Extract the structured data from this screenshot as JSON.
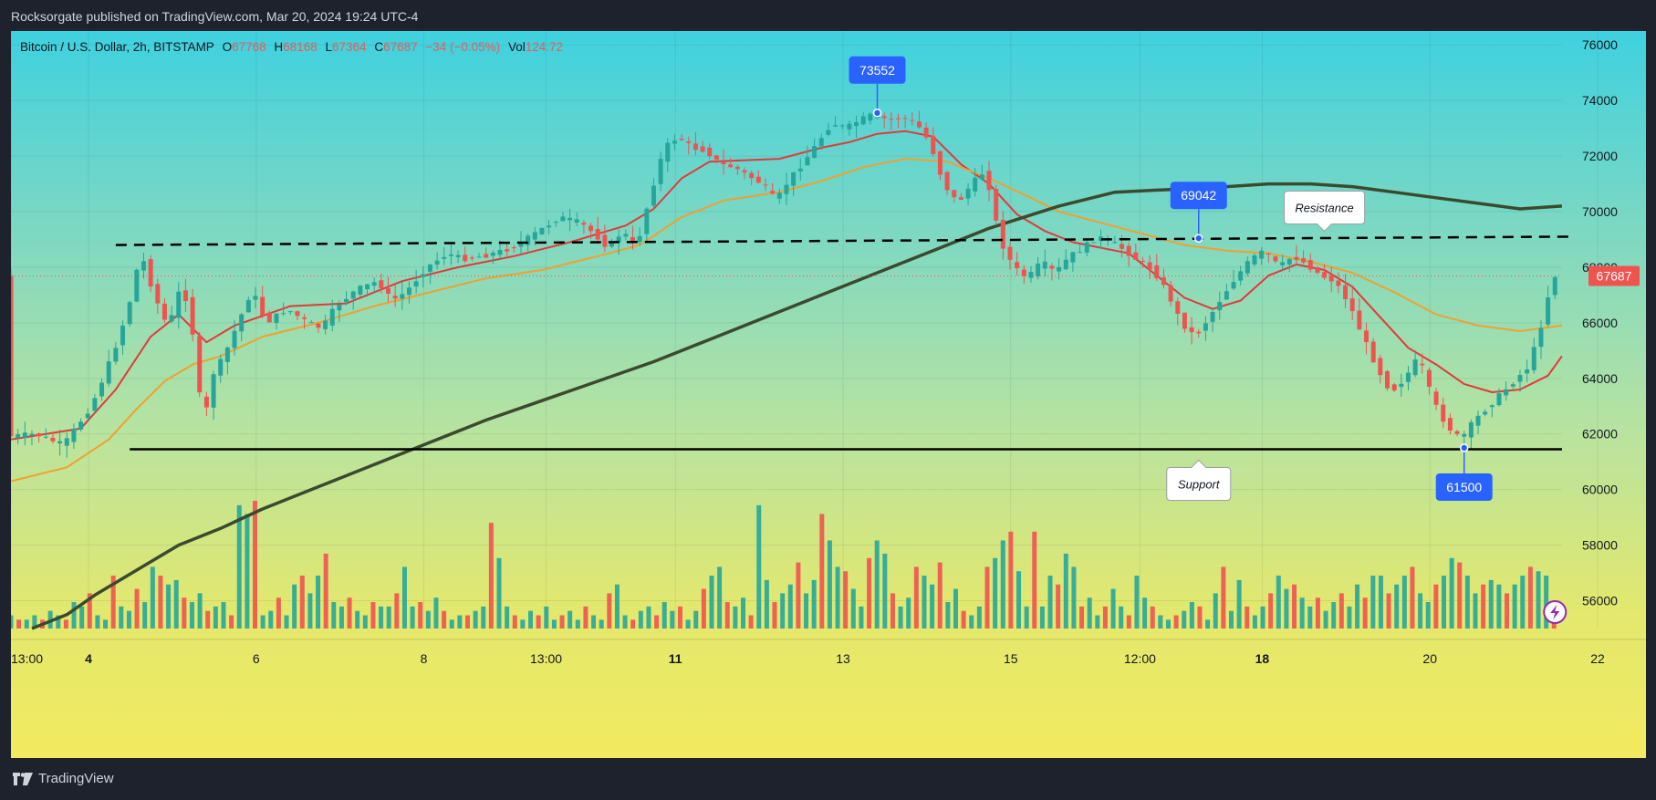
{
  "header": {
    "publisher_text": "Rocksorgate published on TradingView.com, Mar 20, 2024 19:24 UTC-4"
  },
  "legend": {
    "symbol": "Bitcoin / U.S. Dollar, 2h, BITSTAMP",
    "open_label": "O",
    "open": "67768",
    "high_label": "H",
    "high": "68168",
    "low_label": "L",
    "low": "67364",
    "close_label": "C",
    "close": "67687",
    "change": "−34 (−0.05%)",
    "vol_label": "Vol",
    "vol": "124.72"
  },
  "footer": {
    "brand": "TradingView"
  },
  "colors": {
    "up": "#26a69a",
    "down": "#ef5350",
    "ema_fast": "#e03a3a",
    "ema_mid": "#f0a030",
    "sma_long": "#3b4a2f",
    "price_label_bg": "#ef5350",
    "callout_blue": "#2962ff"
  },
  "chart_data": {
    "type": "candlestick",
    "symbol": "Bitcoin / U.S. Dollar",
    "interval": "2h",
    "exchange": "BITSTAMP",
    "ylim": [
      55000,
      76500
    ],
    "y_ticks": [
      "56000",
      "58000",
      "60000",
      "62000",
      "64000",
      "66000",
      "68000",
      "70000",
      "72000",
      "74000",
      "76000"
    ],
    "x_ticks": [
      {
        "label": "13:00",
        "bold": false,
        "x": 0.0
      },
      {
        "label": "4",
        "bold": true,
        "x": 11.1
      },
      {
        "label": "6",
        "bold": false,
        "x": 35.1
      },
      {
        "label": "8",
        "bold": false,
        "x": 59.1
      },
      {
        "label": "13:00",
        "bold": false,
        "x": 76.6
      },
      {
        "label": "11",
        "bold": true,
        "x": 95.1
      },
      {
        "label": "13",
        "bold": false,
        "x": 119.1
      },
      {
        "label": "15",
        "bold": false,
        "x": 143.1
      },
      {
        "label": "12:00",
        "bold": false,
        "x": 161.6
      },
      {
        "label": "18",
        "bold": true,
        "x": 179.1
      },
      {
        "label": "20",
        "bold": false,
        "x": 203.1
      },
      {
        "label": "22",
        "bold": false,
        "x": 227.1
      }
    ],
    "last_price": "67687",
    "price_points": [
      [
        0,
        61900
      ],
      [
        4,
        62000
      ],
      [
        8,
        61600
      ],
      [
        10,
        62300
      ],
      [
        12,
        63000
      ],
      [
        14,
        64200
      ],
      [
        16,
        65500
      ],
      [
        18,
        67200
      ],
      [
        19,
        68600
      ],
      [
        21,
        67000
      ],
      [
        23,
        65800
      ],
      [
        25,
        67500
      ],
      [
        27,
        65000
      ],
      [
        28,
        61800
      ],
      [
        29,
        64000
      ],
      [
        31,
        64800
      ],
      [
        33,
        66000
      ],
      [
        35,
        67200
      ],
      [
        37,
        66000
      ],
      [
        40,
        66500
      ],
      [
        43,
        66000
      ],
      [
        45,
        65800
      ],
      [
        47,
        66600
      ],
      [
        50,
        67200
      ],
      [
        53,
        67500
      ],
      [
        55,
        66800
      ],
      [
        57,
        67100
      ],
      [
        60,
        68000
      ],
      [
        63,
        68500
      ],
      [
        65,
        68300
      ],
      [
        68,
        68400
      ],
      [
        71,
        68600
      ],
      [
        73,
        68800
      ],
      [
        76,
        69300
      ],
      [
        79,
        69800
      ],
      [
        82,
        69600
      ],
      [
        84,
        69200
      ],
      [
        86,
        68700
      ],
      [
        88,
        69300
      ],
      [
        90,
        68700
      ],
      [
        92,
        70600
      ],
      [
        94,
        72300
      ],
      [
        96,
        72700
      ],
      [
        98,
        72300
      ],
      [
        100,
        72200
      ],
      [
        102,
        71700
      ],
      [
        104,
        71600
      ],
      [
        106,
        71300
      ],
      [
        108,
        71000
      ],
      [
        110,
        70400
      ],
      [
        112,
        71200
      ],
      [
        114,
        71800
      ],
      [
        116,
        72500
      ],
      [
        118,
        73200
      ],
      [
        120,
        73000
      ],
      [
        122,
        73300
      ],
      [
        124,
        73500
      ],
      [
        126,
        73300
      ],
      [
        128,
        73400
      ],
      [
        130,
        73200
      ],
      [
        132,
        72500
      ],
      [
        134,
        71000
      ],
      [
        136,
        70300
      ],
      [
        138,
        71000
      ],
      [
        140,
        71500
      ],
      [
        142,
        69000
      ],
      [
        144,
        68000
      ],
      [
        146,
        67600
      ],
      [
        148,
        68200
      ],
      [
        150,
        67800
      ],
      [
        152,
        68400
      ],
      [
        154,
        68700
      ],
      [
        156,
        69100
      ],
      [
        158,
        68900
      ],
      [
        160,
        68600
      ],
      [
        162,
        68200
      ],
      [
        164,
        67900
      ],
      [
        166,
        67100
      ],
      [
        168,
        66000
      ],
      [
        170,
        65500
      ],
      [
        172,
        66200
      ],
      [
        174,
        67000
      ],
      [
        176,
        67700
      ],
      [
        178,
        68300
      ],
      [
        180,
        68600
      ],
      [
        182,
        68000
      ],
      [
        184,
        68400
      ],
      [
        186,
        68100
      ],
      [
        188,
        67700
      ],
      [
        190,
        67500
      ],
      [
        192,
        66700
      ],
      [
        194,
        65500
      ],
      [
        196,
        64400
      ],
      [
        198,
        63500
      ],
      [
        200,
        64000
      ],
      [
        202,
        64800
      ],
      [
        204,
        63200
      ],
      [
        206,
        62300
      ],
      [
        208,
        61800
      ],
      [
        210,
        62500
      ],
      [
        212,
        63000
      ],
      [
        214,
        63500
      ],
      [
        216,
        64000
      ],
      [
        218,
        64500
      ],
      [
        219,
        65600
      ],
      [
        220,
        66200
      ],
      [
        221,
        67700
      ]
    ],
    "series": [
      {
        "name": "",
        "type": "line",
        "values": [
          [
            0,
            61800
          ],
          [
            10,
            62200
          ],
          [
            15,
            63600
          ],
          [
            20,
            65500
          ],
          [
            24,
            66300
          ],
          [
            28,
            65300
          ],
          [
            32,
            65900
          ],
          [
            40,
            66600
          ],
          [
            48,
            66700
          ],
          [
            56,
            67500
          ],
          [
            64,
            68000
          ],
          [
            72,
            68400
          ],
          [
            80,
            68900
          ],
          [
            88,
            69500
          ],
          [
            92,
            70100
          ],
          [
            96,
            71200
          ],
          [
            100,
            71800
          ],
          [
            110,
            71900
          ],
          [
            116,
            72300
          ],
          [
            120,
            72500
          ],
          [
            124,
            72800
          ],
          [
            128,
            72900
          ],
          [
            132,
            72700
          ],
          [
            136,
            71700
          ],
          [
            140,
            71000
          ],
          [
            144,
            69900
          ],
          [
            148,
            69300
          ],
          [
            152,
            68900
          ],
          [
            156,
            68700
          ],
          [
            160,
            68500
          ],
          [
            164,
            67700
          ],
          [
            168,
            66900
          ],
          [
            172,
            66500
          ],
          [
            176,
            66800
          ],
          [
            180,
            67700
          ],
          [
            184,
            68100
          ],
          [
            188,
            67900
          ],
          [
            192,
            67300
          ],
          [
            196,
            66200
          ],
          [
            200,
            65100
          ],
          [
            204,
            64500
          ],
          [
            208,
            63800
          ],
          [
            212,
            63500
          ],
          [
            216,
            63600
          ],
          [
            220,
            64100
          ],
          [
            222,
            64800
          ]
        ]
      },
      {
        "name": "",
        "type": "line",
        "values": [
          [
            0,
            60300
          ],
          [
            8,
            60800
          ],
          [
            14,
            61800
          ],
          [
            18,
            62900
          ],
          [
            22,
            63900
          ],
          [
            26,
            64500
          ],
          [
            30,
            64800
          ],
          [
            36,
            65500
          ],
          [
            44,
            66000
          ],
          [
            52,
            66600
          ],
          [
            60,
            67100
          ],
          [
            68,
            67600
          ],
          [
            76,
            67900
          ],
          [
            84,
            68400
          ],
          [
            90,
            68800
          ],
          [
            96,
            69800
          ],
          [
            102,
            70400
          ],
          [
            110,
            70700
          ],
          [
            116,
            71100
          ],
          [
            122,
            71600
          ],
          [
            128,
            71900
          ],
          [
            134,
            71800
          ],
          [
            140,
            71200
          ],
          [
            146,
            70500
          ],
          [
            150,
            70000
          ],
          [
            156,
            69600
          ],
          [
            162,
            69200
          ],
          [
            168,
            68800
          ],
          [
            174,
            68600
          ],
          [
            180,
            68500
          ],
          [
            186,
            68200
          ],
          [
            192,
            67800
          ],
          [
            198,
            67100
          ],
          [
            204,
            66300
          ],
          [
            210,
            65900
          ],
          [
            216,
            65700
          ],
          [
            222,
            65900
          ]
        ]
      },
      {
        "name": "",
        "type": "line",
        "values": [
          [
            3,
            55000
          ],
          [
            8,
            55500
          ],
          [
            12,
            56200
          ],
          [
            18,
            57100
          ],
          [
            24,
            58000
          ],
          [
            30,
            58600
          ],
          [
            36,
            59300
          ],
          [
            44,
            60100
          ],
          [
            52,
            60900
          ],
          [
            60,
            61700
          ],
          [
            68,
            62500
          ],
          [
            76,
            63200
          ],
          [
            84,
            63900
          ],
          [
            92,
            64600
          ],
          [
            100,
            65400
          ],
          [
            108,
            66200
          ],
          [
            116,
            67000
          ],
          [
            124,
            67800
          ],
          [
            132,
            68600
          ],
          [
            140,
            69400
          ],
          [
            150,
            70200
          ],
          [
            158,
            70700
          ],
          [
            166,
            70800
          ],
          [
            174,
            70900
          ],
          [
            180,
            71000
          ],
          [
            186,
            71000
          ],
          [
            192,
            70900
          ],
          [
            198,
            70700
          ],
          [
            204,
            70500
          ],
          [
            210,
            70300
          ],
          [
            216,
            70100
          ],
          [
            222,
            70200
          ]
        ]
      }
    ],
    "volume": [
      3,
      2,
      2,
      3,
      2,
      4,
      3,
      2,
      6,
      5,
      8,
      3,
      2,
      12,
      5,
      4,
      9,
      6,
      14,
      12,
      10,
      11,
      7,
      6,
      8,
      4,
      5,
      6,
      3,
      28,
      26,
      29,
      3,
      4,
      7,
      3,
      10,
      12,
      8,
      12,
      17,
      6,
      5,
      7,
      4,
      3,
      6,
      5,
      5,
      8,
      14,
      5,
      6,
      4,
      7,
      4,
      2,
      3,
      3,
      4,
      5,
      24,
      16,
      5,
      3,
      2,
      4,
      3,
      5,
      2,
      3,
      4,
      2,
      5,
      3,
      2,
      8,
      10,
      3,
      2,
      4,
      5,
      3,
      6,
      4,
      5,
      2,
      4,
      9,
      12,
      14,
      6,
      5,
      7,
      3,
      28,
      11,
      6,
      8,
      10,
      15,
      8,
      11,
      26,
      20,
      14,
      13,
      9,
      5,
      16,
      20,
      17,
      8,
      5,
      7,
      14,
      12,
      10,
      15,
      6,
      9,
      4,
      3,
      5,
      14,
      16,
      20,
      22,
      13,
      5,
      22,
      5,
      12,
      10,
      17,
      14,
      5,
      7,
      3,
      5,
      9,
      5,
      3,
      12,
      7,
      5,
      3,
      2,
      3,
      4,
      6,
      5,
      2,
      8,
      14,
      4,
      11,
      5,
      3,
      5,
      8,
      12,
      9,
      10,
      7,
      5,
      7,
      4,
      6,
      8,
      5,
      10,
      7,
      12,
      12,
      8,
      10,
      12,
      14,
      8,
      6,
      10,
      12,
      16,
      15,
      12,
      8,
      10,
      11,
      10,
      8,
      10,
      12,
      14,
      13,
      12,
      5
    ],
    "annotations": [
      {
        "type": "callout",
        "text": "73552",
        "color": "blue",
        "x": 124,
        "y": 73552
      },
      {
        "type": "callout",
        "text": "69042",
        "color": "blue",
        "x": 170,
        "y": 69042
      },
      {
        "type": "callout",
        "text": "61500",
        "color": "blue",
        "x": 208,
        "y": 61500
      },
      {
        "type": "callout",
        "text": "Resistance",
        "color": "white",
        "x": 188,
        "y": 69100
      },
      {
        "type": "callout",
        "text": "Support",
        "color": "white",
        "x": 170,
        "y": 61450
      },
      {
        "type": "hline",
        "style": "dashed",
        "from": [
          15,
          68800
        ],
        "to": [
          223,
          69100
        ],
        "name": "resistance-line"
      },
      {
        "type": "hline",
        "style": "solid",
        "from": [
          17,
          61450
        ],
        "to": [
          222,
          61450
        ],
        "name": "support-line"
      }
    ]
  }
}
